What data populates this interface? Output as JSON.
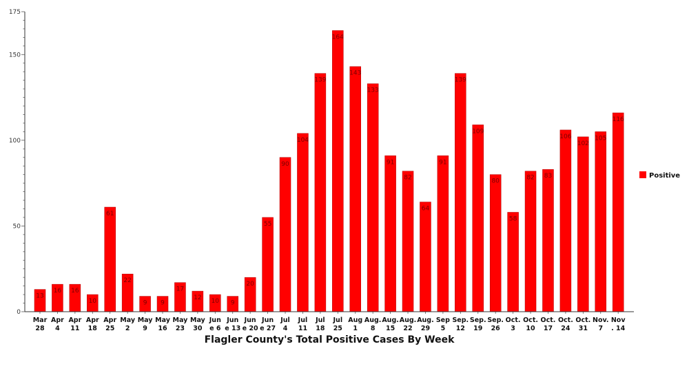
{
  "chart_data": {
    "type": "bar",
    "title": "Flagler County's Total Positive Cases By Week",
    "xlabel": "",
    "ylabel": "",
    "ylim": [
      0,
      175
    ],
    "yticks": [
      0,
      50,
      100,
      150,
      175
    ],
    "grid": false,
    "legend_position": "right",
    "categories": [
      [
        "Mar",
        "28"
      ],
      [
        "Apr",
        "4"
      ],
      [
        "Apr",
        "11"
      ],
      [
        "Apr",
        "18"
      ],
      [
        "Apr",
        "25"
      ],
      [
        "May",
        "2"
      ],
      [
        "May",
        "9"
      ],
      [
        "May",
        "16"
      ],
      [
        "May",
        "23"
      ],
      [
        "May",
        "30"
      ],
      [
        "Jun",
        "e 6"
      ],
      [
        "Jun",
        "e 13"
      ],
      [
        "Jun",
        "e 20"
      ],
      [
        "Jun",
        "e 27"
      ],
      [
        "Jul",
        "4"
      ],
      [
        "Jul",
        "11"
      ],
      [
        "Jul",
        "18"
      ],
      [
        "Jul",
        "25"
      ],
      [
        "Aug",
        "1"
      ],
      [
        "Aug.",
        "8"
      ],
      [
        "Aug.",
        "15"
      ],
      [
        "Aug.",
        "22"
      ],
      [
        "Aug.",
        "29"
      ],
      [
        "Sep",
        "5"
      ],
      [
        "Sep.",
        "12"
      ],
      [
        "Sep.",
        "19"
      ],
      [
        "Sep.",
        "26"
      ],
      [
        "Oct.",
        "3"
      ],
      [
        "Oct.",
        "10"
      ],
      [
        "Oct.",
        "17"
      ],
      [
        "Oct.",
        "24"
      ],
      [
        "Oct.",
        "31"
      ],
      [
        "Nov.",
        "7"
      ],
      [
        "Nov",
        ". 14"
      ]
    ],
    "series": [
      {
        "name": "Positive",
        "color": "#ff0000",
        "values": [
          13,
          16,
          16,
          10,
          61,
          22,
          9,
          9,
          17,
          12,
          10,
          9,
          20,
          55,
          90,
          104,
          139,
          164,
          143,
          133,
          91,
          82,
          64,
          91,
          139,
          109,
          80,
          58,
          82,
          83,
          106,
          102,
          105,
          116
        ]
      }
    ]
  }
}
